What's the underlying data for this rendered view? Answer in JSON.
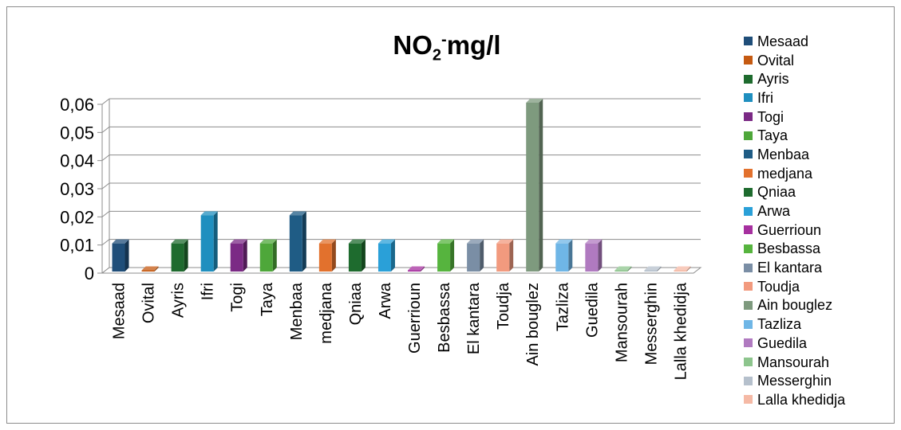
{
  "chart_data": {
    "type": "bar",
    "title": {
      "main": "NO",
      "sub": "2",
      "sup": "-",
      "rest": "mg/l"
    },
    "categories": [
      "Mesaad",
      "Ovital",
      "Ayris",
      "Ifri",
      "Togi",
      "Taya",
      "Menbaa",
      "medjana",
      "Qniaa",
      "Arwa",
      "Guerrioun",
      "Besbassa",
      "El kantara",
      "Toudja",
      "Ain bouglez",
      "Tazliza",
      "Guedila",
      "Mansourah",
      "Messerghin",
      "Lalla khedidja"
    ],
    "values": [
      0.01,
      0,
      0.01,
      0.02,
      0.01,
      0.01,
      0.02,
      0.01,
      0.01,
      0.01,
      0,
      0.01,
      0.01,
      0.01,
      0.06,
      0.01,
      0.01,
      0,
      0,
      0
    ],
    "colors": [
      "#1f4e79",
      "#c55a11",
      "#1e6b2e",
      "#1f8fbf",
      "#7b2a85",
      "#4ea73a",
      "#1f5c85",
      "#e2712d",
      "#1e6b2e",
      "#2aa0d8",
      "#a6309f",
      "#56b43e",
      "#7a8ea5",
      "#f29a7e",
      "#7e9a7e",
      "#6fb6e6",
      "#b07ac0",
      "#8dc58d",
      "#b5c0cc",
      "#f5b9a5"
    ],
    "yticks": [
      "0",
      "0,01",
      "0,02",
      "0,03",
      "0,04",
      "0,05",
      "0,06"
    ],
    "ylim": [
      0,
      0.06
    ],
    "grid": true,
    "legend_position": "right",
    "xlabel": "",
    "ylabel": ""
  }
}
